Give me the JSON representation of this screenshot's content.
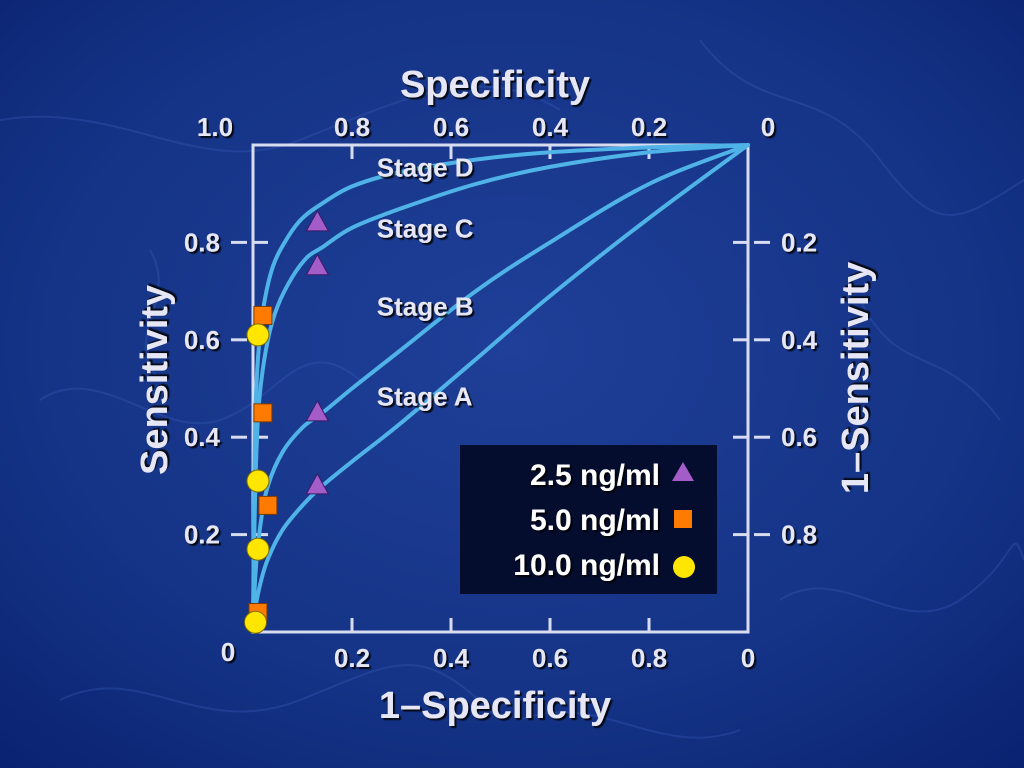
{
  "chart_data": {
    "type": "line",
    "title": "",
    "axes": {
      "bottom": {
        "label": "1–Specificity",
        "ticks": [
          "0.2",
          "0.4",
          "0.6",
          "0.8",
          "0"
        ],
        "range": [
          0,
          1
        ]
      },
      "top": {
        "label": "Specificity",
        "ticks": [
          "1.0",
          "0.8",
          "0.6",
          "0.4",
          "0.2",
          "0"
        ],
        "range": [
          1,
          0
        ]
      },
      "left": {
        "label": "Sensitivity",
        "ticks": [
          "0.2",
          "0.4",
          "0.6",
          "0.8"
        ],
        "origin_label": "0",
        "range": [
          0,
          1
        ]
      },
      "right": {
        "label": "1–Sensitivity",
        "ticks": [
          "0.2",
          "0.4",
          "0.6",
          "0.8"
        ],
        "range": [
          1,
          0
        ]
      }
    },
    "grid": false,
    "curve_color": "#4fb3e8",
    "series": [
      {
        "name": "Stage D",
        "x": [
          0,
          0.002,
          0.005,
          0.01,
          0.02,
          0.04,
          0.07,
          0.1,
          0.14,
          0.2,
          0.3,
          0.45,
          0.6,
          0.8,
          1.0
        ],
        "y": [
          0,
          0.25,
          0.45,
          0.56,
          0.66,
          0.75,
          0.81,
          0.85,
          0.88,
          0.915,
          0.945,
          0.97,
          0.985,
          0.995,
          1.0
        ]
      },
      {
        "name": "Stage C",
        "x": [
          0,
          0.003,
          0.008,
          0.015,
          0.03,
          0.05,
          0.08,
          0.11,
          0.14,
          0.2,
          0.3,
          0.45,
          0.6,
          0.8,
          1.0
        ],
        "y": [
          0,
          0.22,
          0.4,
          0.5,
          0.6,
          0.67,
          0.73,
          0.77,
          0.79,
          0.83,
          0.87,
          0.92,
          0.955,
          0.985,
          1.0
        ]
      },
      {
        "name": "Stage B",
        "x": [
          0,
          0.005,
          0.015,
          0.03,
          0.06,
          0.1,
          0.14,
          0.2,
          0.3,
          0.45,
          0.6,
          0.8,
          1.0
        ],
        "y": [
          0,
          0.12,
          0.22,
          0.3,
          0.37,
          0.42,
          0.45,
          0.5,
          0.58,
          0.7,
          0.8,
          0.92,
          1.0
        ]
      },
      {
        "name": "Stage A",
        "x": [
          0,
          0.005,
          0.015,
          0.03,
          0.06,
          0.1,
          0.14,
          0.2,
          0.3,
          0.45,
          0.6,
          0.8,
          1.0
        ],
        "y": [
          0,
          0.05,
          0.1,
          0.15,
          0.21,
          0.26,
          0.3,
          0.35,
          0.43,
          0.56,
          0.69,
          0.85,
          1.0
        ]
      }
    ],
    "stage_labels": [
      {
        "text": "Stage D",
        "x": 0.25,
        "y": 0.935
      },
      {
        "text": "Stage C",
        "x": 0.25,
        "y": 0.81
      },
      {
        "text": "Stage B",
        "x": 0.25,
        "y": 0.65
      },
      {
        "text": "Stage A",
        "x": 0.25,
        "y": 0.465
      }
    ],
    "markers": [
      {
        "legend": "2.5 ng/ml",
        "shape": "triangle",
        "color": "#a35cc8",
        "points": [
          [
            0.13,
            0.84
          ],
          [
            0.13,
            0.75
          ],
          [
            0.13,
            0.45
          ],
          [
            0.13,
            0.3
          ]
        ]
      },
      {
        "legend": "5.0 ng/ml",
        "shape": "square",
        "color": "#ff7a00",
        "points": [
          [
            0.02,
            0.65
          ],
          [
            0.02,
            0.45
          ],
          [
            0.03,
            0.26
          ],
          [
            0.01,
            0.04
          ]
        ]
      },
      {
        "legend": "10.0 ng/ml",
        "shape": "circle",
        "color": "#ffe600",
        "points": [
          [
            0.01,
            0.61
          ],
          [
            0.01,
            0.31
          ],
          [
            0.01,
            0.17
          ],
          [
            0.005,
            0.02
          ]
        ]
      }
    ],
    "legend": {
      "placement": "bottom-right",
      "background": "#050d2e"
    }
  }
}
